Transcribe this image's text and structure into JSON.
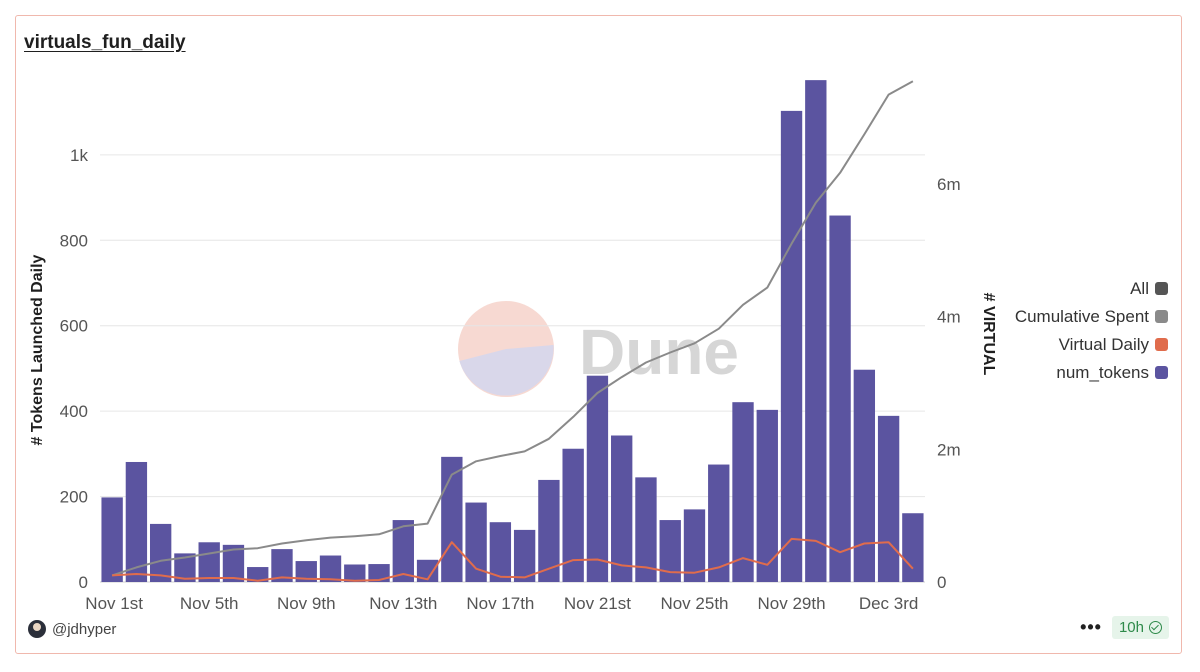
{
  "card": {
    "title": "virtuals_fun_daily"
  },
  "footer": {
    "username": "@jdhyper",
    "more_label": "•••",
    "refresh_label": "10h"
  },
  "watermark": {
    "text": "Dune"
  },
  "colors": {
    "num_tokens": "#5b54a0",
    "virtual_daily": "#e06c4c",
    "cumulative": "#8a8a8a",
    "all": "#555555",
    "border": "#f0b8ad"
  },
  "chart_data": {
    "type": "bar",
    "categories": [
      "Nov 1st",
      "Nov 2nd",
      "Nov 3rd",
      "Nov 4th",
      "Nov 5th",
      "Nov 6th",
      "Nov 7th",
      "Nov 8th",
      "Nov 9th",
      "Nov 10th",
      "Nov 11th",
      "Nov 12th",
      "Nov 13th",
      "Nov 14th",
      "Nov 15th",
      "Nov 16th",
      "Nov 17th",
      "Nov 18th",
      "Nov 19th",
      "Nov 20th",
      "Nov 21st",
      "Nov 22nd",
      "Nov 23rd",
      "Nov 24th",
      "Nov 25th",
      "Nov 26th",
      "Nov 27th",
      "Nov 28th",
      "Nov 29th",
      "Nov 30th",
      "Dec 1st",
      "Dec 2nd",
      "Dec 3rd",
      "Dec 4th"
    ],
    "x_tick_labels": [
      "Nov 1st",
      "Nov 5th",
      "Nov 9th",
      "Nov 13th",
      "Nov 17th",
      "Nov 21st",
      "Nov 25th",
      "Nov 29th",
      "Dec 3rd"
    ],
    "x_tick_indices": [
      0,
      4,
      8,
      12,
      16,
      20,
      24,
      28,
      32
    ],
    "series": [
      {
        "name": "num_tokens",
        "type": "bar",
        "axis": "left",
        "values": [
          198,
          281,
          136,
          67,
          93,
          87,
          35,
          77,
          49,
          62,
          41,
          42,
          145,
          52,
          293,
          186,
          140,
          122,
          239,
          312,
          483,
          343,
          245,
          145,
          170,
          275,
          421,
          403,
          1103,
          1175,
          858,
          497,
          389,
          161
        ]
      },
      {
        "name": "Virtual Daily",
        "type": "line",
        "axis": "right",
        "values": [
          0.1,
          0.12,
          0.1,
          0.05,
          0.06,
          0.06,
          0.02,
          0.07,
          0.05,
          0.04,
          0.02,
          0.03,
          0.12,
          0.04,
          0.6,
          0.2,
          0.08,
          0.07,
          0.2,
          0.33,
          0.34,
          0.25,
          0.22,
          0.15,
          0.14,
          0.22,
          0.36,
          0.26,
          0.65,
          0.62,
          0.45,
          0.58,
          0.6,
          0.2
        ]
      },
      {
        "name": "Cumulative Spent",
        "type": "line",
        "axis": "right",
        "values": [
          0.1,
          0.22,
          0.32,
          0.37,
          0.43,
          0.49,
          0.51,
          0.58,
          0.63,
          0.67,
          0.69,
          0.72,
          0.84,
          0.88,
          1.62,
          1.82,
          1.9,
          1.97,
          2.16,
          2.49,
          2.85,
          3.09,
          3.31,
          3.46,
          3.6,
          3.82,
          4.18,
          4.44,
          5.1,
          5.72,
          6.17,
          6.75,
          7.35,
          7.55
        ]
      }
    ],
    "legend": [
      "All",
      "Cumulative Spent",
      "Virtual Daily",
      "num_tokens"
    ],
    "legend_position": "right",
    "ylabel": "# Tokens Launched Daily",
    "y2label": "# VIRTUAL",
    "ylim": [
      0,
      1180
    ],
    "y2lim": [
      0,
      7.6
    ],
    "y_ticks": [
      0,
      200,
      400,
      600,
      800,
      1000
    ],
    "y_tick_labels": [
      "0",
      "200",
      "400",
      "600",
      "800",
      "1k"
    ],
    "y2_ticks": [
      0,
      2,
      4,
      6
    ],
    "y2_tick_labels": [
      "0",
      "2m",
      "4m",
      "6m"
    ],
    "grid": true
  }
}
